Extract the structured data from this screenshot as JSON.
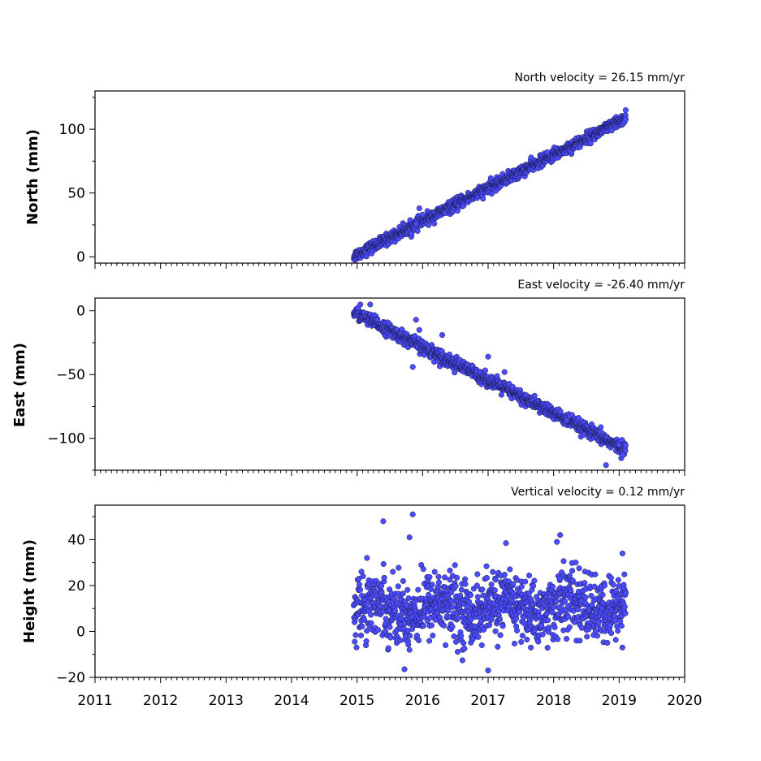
{
  "figure": {
    "point_color": "#4b4bff",
    "point_edge_color": "#1a1a4a"
  },
  "chart_data": [
    {
      "type": "scatter",
      "title": "North velocity = 26.15 mm/yr",
      "ylabel": "North (mm)",
      "xlim": [
        2011,
        2020
      ],
      "ylim": [
        -5,
        130
      ],
      "yticks": [
        0,
        50,
        100
      ],
      "ytick_labels": [
        "0",
        "50",
        "100"
      ],
      "xticks": [
        2011,
        2012,
        2013,
        2014,
        2015,
        2016,
        2017,
        2018,
        2019,
        2020
      ],
      "xtick_labels": [],
      "trend": {
        "x_start": 2014.95,
        "x_end": 2019.1,
        "y_start": 0.5,
        "y_end": 108.5,
        "scatter": 2.2
      },
      "outliers": [
        [
          2015.95,
          38
        ],
        [
          2015.9,
          26
        ],
        [
          2019.1,
          115
        ],
        [
          2016.0,
          33
        ],
        [
          2017.9,
          82
        ]
      ]
    },
    {
      "type": "scatter",
      "title": "East velocity = -26.40 mm/yr",
      "ylabel": "East (mm)",
      "xlim": [
        2011,
        2020
      ],
      "ylim": [
        -125,
        10
      ],
      "yticks": [
        0,
        -50,
        -100
      ],
      "ytick_labels": [
        "0",
        "−50",
        "−100"
      ],
      "xticks": [
        2011,
        2012,
        2013,
        2014,
        2015,
        2016,
        2017,
        2018,
        2019,
        2020
      ],
      "xtick_labels": [],
      "trend": {
        "x_start": 2014.95,
        "x_end": 2019.1,
        "y_start": -1,
        "y_end": -109,
        "scatter": 2.5
      },
      "outliers": [
        [
          2015.05,
          5
        ],
        [
          2015.2,
          5
        ],
        [
          2015.9,
          -7
        ],
        [
          2015.95,
          -15
        ],
        [
          2015.85,
          -44
        ],
        [
          2016.3,
          -19
        ],
        [
          2017.0,
          -36
        ],
        [
          2018.2,
          -86
        ],
        [
          2018.8,
          -121
        ],
        [
          2019.05,
          -113
        ],
        [
          2019.0,
          -105
        ],
        [
          2017.25,
          -48
        ]
      ]
    },
    {
      "type": "scatter",
      "title": "Vertical velocity = 0.12 mm/yr",
      "ylabel": "Height (mm)",
      "xlim": [
        2011,
        2020
      ],
      "ylim": [
        -20,
        55
      ],
      "yticks": [
        -20,
        0,
        20,
        40
      ],
      "ytick_labels": [
        "−20",
        "0",
        "20",
        "40"
      ],
      "xticks": [
        2011,
        2012,
        2013,
        2014,
        2015,
        2016,
        2017,
        2018,
        2019,
        2020
      ],
      "xtick_labels": [
        "2011",
        "2012",
        "2013",
        "2014",
        "2015",
        "2016",
        "2017",
        "2018",
        "2019",
        "2020"
      ],
      "trend": {
        "x_start": 2014.95,
        "x_end": 2019.1,
        "y_start": 10,
        "y_end": 11,
        "scatter": 7
      },
      "outliers": [
        [
          2015.4,
          48
        ],
        [
          2015.85,
          51
        ],
        [
          2015.8,
          41
        ],
        [
          2017.0,
          -17
        ],
        [
          2018.1,
          42
        ],
        [
          2018.05,
          39
        ],
        [
          2015.15,
          32
        ],
        [
          2015.8,
          -8
        ],
        [
          2016.35,
          -6
        ],
        [
          2019.05,
          34
        ],
        [
          2019.05,
          -7
        ],
        [
          2018.4,
          -4
        ]
      ]
    }
  ]
}
